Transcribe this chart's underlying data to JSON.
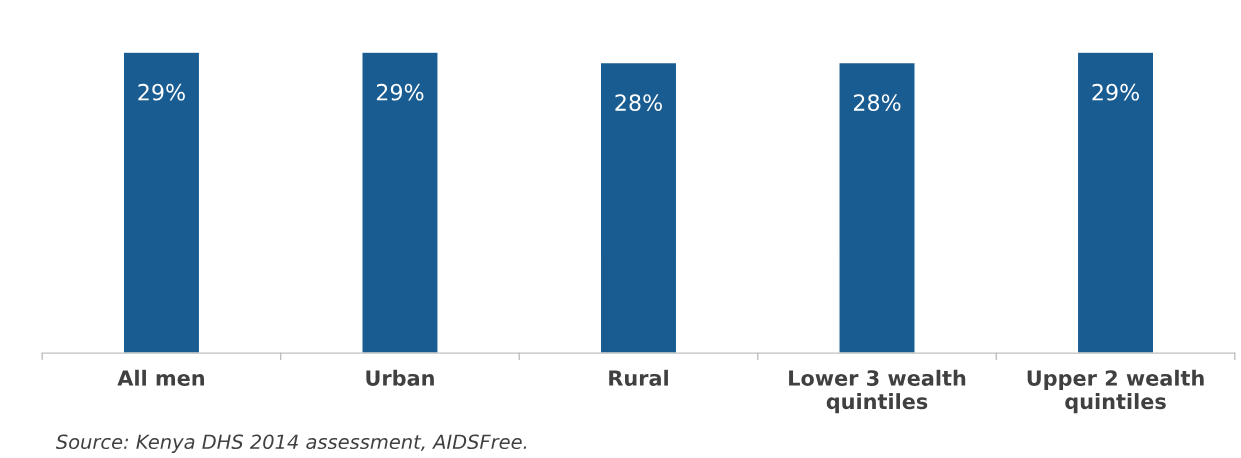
{
  "chart_data": {
    "type": "bar",
    "categories": [
      "All men",
      "Urban",
      "Rural",
      "Lower 3 wealth\nquintiles",
      "Upper 2 wealth\nquintiles"
    ],
    "values": [
      29,
      29,
      28,
      28,
      29
    ],
    "value_labels": [
      "29%",
      "29%",
      "28%",
      "28%",
      "29%"
    ],
    "color": "#185c91",
    "grid": false,
    "legend": false,
    "tick_labels": "x",
    "annotations": [
      "Source: Kenya DHS 2014 assessment, AIDSFree."
    ]
  }
}
